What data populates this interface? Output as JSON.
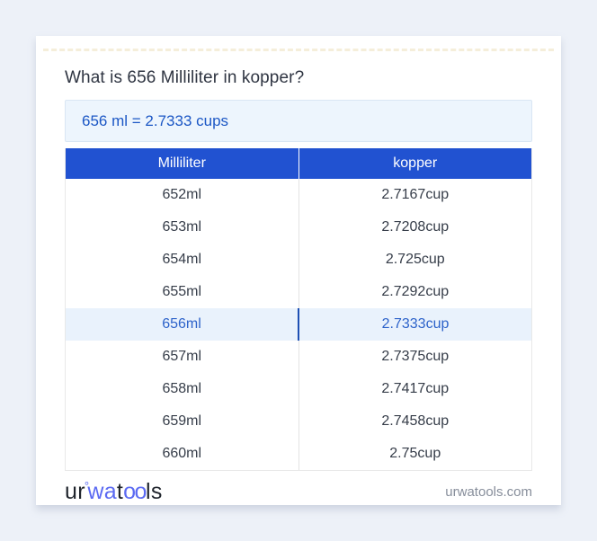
{
  "page": {
    "title": "What is 656 Milliliter in kopper?"
  },
  "result": {
    "text": "656 ml = 2.7333 cups"
  },
  "table": {
    "headers": [
      "Milliliter",
      "kopper"
    ],
    "highlighted_index": 4,
    "rows": [
      {
        "ml": "652ml",
        "cup": "2.7167cup"
      },
      {
        "ml": "653ml",
        "cup": "2.7208cup"
      },
      {
        "ml": "654ml",
        "cup": "2.725cup"
      },
      {
        "ml": "655ml",
        "cup": "2.7292cup"
      },
      {
        "ml": "656ml",
        "cup": "2.7333cup"
      },
      {
        "ml": "657ml",
        "cup": "2.7375cup"
      },
      {
        "ml": "658ml",
        "cup": "2.7417cup"
      },
      {
        "ml": "659ml",
        "cup": "2.7458cup"
      },
      {
        "ml": "660ml",
        "cup": "2.75cup"
      }
    ]
  },
  "footer": {
    "logo": {
      "seg1": "ur",
      "ring": "°",
      "seg2": "wa",
      "seg3": "t",
      "seg4": "oo",
      "seg5": "ls"
    },
    "site": "urwatools.com"
  },
  "colors": {
    "page_background": "#edf1f8",
    "header_blue": "#2152d1",
    "highlight_row_bg": "#e9f2fc",
    "highlight_text": "#2d63ca",
    "result_text": "#1c57c5",
    "result_bg": "#edf5fd",
    "logo_accent": "#5b6af2"
  }
}
